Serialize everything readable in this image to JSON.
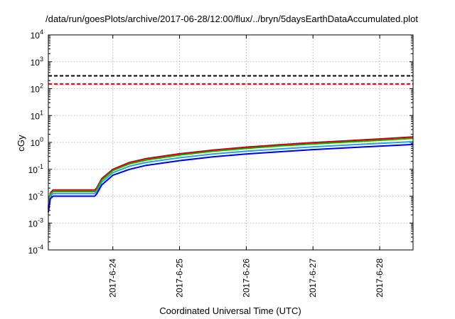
{
  "chart_data": {
    "type": "line",
    "title": "/data/run/goesPlots/archive/2017-06-28/12:00/flux/../bryn/5daysEarthDataAccumulated.plot",
    "xlabel": "Coordinated Universal Time (UTC)",
    "ylabel": "cGy",
    "y_scale": "log",
    "ylim": [
      0.0001,
      10000
    ],
    "xlim": [
      "2017-06-23 00:48",
      "2017-06-28 12:00"
    ],
    "grid": true,
    "legend": "none",
    "x_tick_labels": [
      "2017-6-24",
      "2017-6-25",
      "2017-6-26",
      "2017-6-27",
      "2017-6-28"
    ],
    "x_tick_values": [
      "2017-06-24",
      "2017-06-25",
      "2017-06-26",
      "2017-06-27",
      "2017-06-28"
    ],
    "y_tick_labels": [
      {
        "base": "10",
        "exp": "-4"
      },
      {
        "base": "10",
        "exp": "-3"
      },
      {
        "base": "10",
        "exp": "-2"
      },
      {
        "base": "10",
        "exp": "-1"
      },
      {
        "base": "10",
        "exp": "0"
      },
      {
        "base": "10",
        "exp": "1"
      },
      {
        "base": "10",
        "exp": "2"
      },
      {
        "base": "10",
        "exp": "3"
      },
      {
        "base": "10",
        "exp": "4"
      }
    ],
    "y_tick_values": [
      0.0001,
      0.001,
      0.01,
      0.1,
      1,
      10,
      100,
      1000,
      10000
    ],
    "thresholds": [
      {
        "value": 300,
        "color": "#000000",
        "style": "dashed"
      },
      {
        "value": 150,
        "color": "#e00000",
        "style": "dashed"
      }
    ],
    "series": [
      {
        "color": "#cc0000",
        "x": [
          "2017-06-23 00:48",
          "2017-06-23 01:30",
          "2017-06-23 02:30",
          "2017-06-23 17:30",
          "2017-06-23 18:10",
          "2017-06-23 20:00",
          "2017-06-24 00:00",
          "2017-06-24 06:00",
          "2017-06-24 12:00",
          "2017-06-25 00:00",
          "2017-06-25 12:00",
          "2017-06-26 00:00",
          "2017-06-26 12:00",
          "2017-06-27 00:00",
          "2017-06-27 12:00",
          "2017-06-28 00:00",
          "2017-06-28 12:00"
        ],
        "values": [
          0.004,
          0.013,
          0.017,
          0.017,
          0.02,
          0.045,
          0.1,
          0.18,
          0.25,
          0.38,
          0.52,
          0.67,
          0.82,
          0.98,
          1.15,
          1.35,
          1.6
        ]
      },
      {
        "color": "#00aa00",
        "x": [
          "2017-06-23 00:48",
          "2017-06-23 01:30",
          "2017-06-23 02:30",
          "2017-06-23 17:30",
          "2017-06-23 18:10",
          "2017-06-23 20:00",
          "2017-06-24 00:00",
          "2017-06-24 06:00",
          "2017-06-24 12:00",
          "2017-06-25 00:00",
          "2017-06-25 12:00",
          "2017-06-26 00:00",
          "2017-06-26 12:00",
          "2017-06-27 00:00",
          "2017-06-27 12:00",
          "2017-06-28 00:00",
          "2017-06-28 12:00"
        ],
        "values": [
          0.0035,
          0.012,
          0.015,
          0.015,
          0.018,
          0.04,
          0.09,
          0.16,
          0.22,
          0.34,
          0.47,
          0.6,
          0.74,
          0.88,
          1.03,
          1.2,
          1.42
        ]
      },
      {
        "color": "#2a9df4",
        "x": [
          "2017-06-23 00:48",
          "2017-06-23 01:30",
          "2017-06-23 02:30",
          "2017-06-23 17:30",
          "2017-06-23 18:10",
          "2017-06-23 20:00",
          "2017-06-24 00:00",
          "2017-06-24 06:00",
          "2017-06-24 12:00",
          "2017-06-25 00:00",
          "2017-06-25 12:00",
          "2017-06-26 00:00",
          "2017-06-26 12:00",
          "2017-06-27 00:00",
          "2017-06-27 12:00",
          "2017-06-28 00:00",
          "2017-06-28 12:00"
        ],
        "values": [
          0.003,
          0.01,
          0.0125,
          0.0125,
          0.015,
          0.033,
          0.075,
          0.13,
          0.18,
          0.27,
          0.37,
          0.47,
          0.57,
          0.68,
          0.8,
          0.92,
          1.07
        ]
      },
      {
        "color": "#0000dd",
        "x": [
          "2017-06-23 00:48",
          "2017-06-23 01:30",
          "2017-06-23 02:30",
          "2017-06-23 17:30",
          "2017-06-23 18:10",
          "2017-06-23 20:00",
          "2017-06-24 00:00",
          "2017-06-24 06:00",
          "2017-06-24 12:00",
          "2017-06-25 00:00",
          "2017-06-25 12:00",
          "2017-06-26 00:00",
          "2017-06-26 12:00",
          "2017-06-27 00:00",
          "2017-06-27 12:00",
          "2017-06-28 00:00",
          "2017-06-28 12:00"
        ],
        "values": [
          0.0025,
          0.008,
          0.01,
          0.01,
          0.012,
          0.026,
          0.06,
          0.1,
          0.14,
          0.21,
          0.29,
          0.37,
          0.45,
          0.54,
          0.63,
          0.73,
          0.84
        ]
      }
    ]
  }
}
